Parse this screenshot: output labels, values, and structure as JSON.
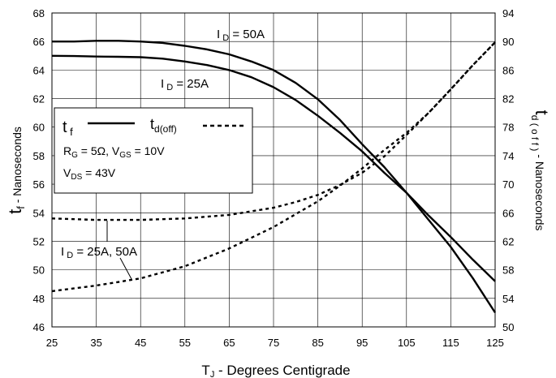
{
  "chart_data": {
    "type": "line",
    "grid": true,
    "x": {
      "label_main": "T",
      "label_sub": "J",
      "label_rest": " - Degrees Centigrade",
      "range": [
        25,
        125
      ],
      "ticks": [
        25,
        35,
        45,
        55,
        65,
        75,
        85,
        95,
        105,
        115,
        125
      ]
    },
    "y_left": {
      "label_main": "t",
      "label_sub": "f",
      "label_rest": " - Nanoseconds",
      "range": [
        46,
        68
      ],
      "ticks": [
        46,
        48,
        50,
        52,
        54,
        56,
        58,
        60,
        62,
        64,
        66,
        68
      ]
    },
    "y_right": {
      "label_main": "t",
      "label_sub": "d ( o f f )",
      "label_rest": " - Nanoseconds",
      "range": [
        50,
        94
      ],
      "ticks": [
        50,
        54,
        58,
        62,
        66,
        70,
        74,
        78,
        82,
        86,
        90,
        94
      ]
    },
    "series": [
      {
        "name": "I_D = 50A (t_f)",
        "axis": "left",
        "style": "solid",
        "x": [
          25,
          30,
          35,
          40,
          45,
          50,
          55,
          60,
          65,
          70,
          75,
          80,
          85,
          90,
          95,
          100,
          105,
          110,
          115,
          120,
          125
        ],
        "y": [
          66.0,
          66.0,
          66.05,
          66.05,
          66.0,
          65.9,
          65.7,
          65.45,
          65.1,
          64.6,
          64.0,
          63.1,
          61.95,
          60.5,
          58.8,
          57.2,
          55.4,
          53.8,
          52.3,
          50.7,
          49.2
        ]
      },
      {
        "name": "I_D = 25A (t_f)",
        "axis": "left",
        "style": "solid",
        "x": [
          25,
          30,
          35,
          40,
          45,
          50,
          55,
          60,
          65,
          70,
          75,
          80,
          85,
          90,
          95,
          100,
          105,
          110,
          115,
          120,
          125
        ],
        "y": [
          65.0,
          64.98,
          64.95,
          64.93,
          64.9,
          64.8,
          64.6,
          64.35,
          64.0,
          63.5,
          62.8,
          61.9,
          60.8,
          59.6,
          58.3,
          56.8,
          55.4,
          53.5,
          51.6,
          49.4,
          47.0
        ]
      },
      {
        "name": "I_D = 25A, 50A (t_d(off), upper)",
        "axis": "right",
        "style": "dashed",
        "x": [
          25,
          35,
          45,
          55,
          65,
          75,
          80,
          85,
          90,
          95,
          100,
          105,
          110,
          115,
          120,
          125
        ],
        "y": [
          65.2,
          65.0,
          65.0,
          65.2,
          65.7,
          66.7,
          67.5,
          68.5,
          69.9,
          71.6,
          73.9,
          76.9,
          80.0,
          83.3,
          86.7,
          89.9
        ]
      },
      {
        "name": "I_D = 25A, 50A (t_d(off), lower)",
        "axis": "right",
        "style": "dashed",
        "x": [
          25,
          35,
          45,
          55,
          65,
          75,
          80,
          85,
          90,
          95,
          100,
          105,
          110,
          115,
          120,
          125
        ],
        "y": [
          55.0,
          55.8,
          56.8,
          58.5,
          61.0,
          64.0,
          65.8,
          67.6,
          69.8,
          72.2,
          74.8,
          77.2,
          80.0,
          83.3,
          86.7,
          89.9
        ]
      }
    ],
    "annotations": {
      "id50": {
        "main": "I",
        "sub": " D",
        "rest": " = 50A"
      },
      "id25": {
        "main": "I",
        "sub": " D",
        "rest": " = 25A"
      },
      "id_both": {
        "main": "I",
        "sub": " D",
        "rest": " = 25A, 50A"
      }
    },
    "legend": {
      "placement": "upper-left",
      "tf_main": "t",
      "tf_sub": " f",
      "td_main": "t",
      "td_sub": "d(off)",
      "rg_main": "R",
      "rg_sub": "G",
      "rg_rest": " = 5Ω,  V",
      "vgs_sub": "GS",
      "vgs_rest": " = 10V",
      "vds_main": "V",
      "vds_sub": "DS",
      "vds_rest": " = 43V"
    },
    "colors": {
      "line": "#000000",
      "grid": "#000000",
      "background": "#ffffff"
    }
  }
}
